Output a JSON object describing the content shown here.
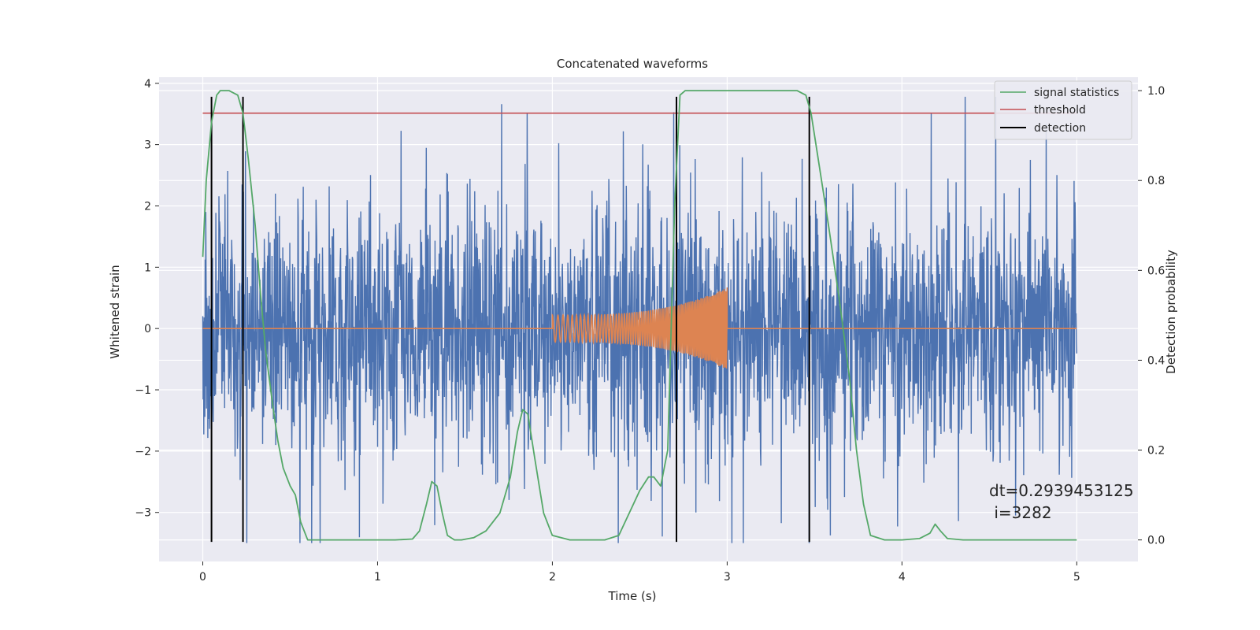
{
  "chart_data": {
    "type": "line",
    "title": "Concatenated waveforms",
    "xlabel": "Time (s)",
    "ylabel": "Whitened strain",
    "y2label": "Detection probability",
    "xlim": [
      -0.25,
      5.35
    ],
    "ylim": [
      -3.8,
      4.1
    ],
    "y2lim": [
      -0.048,
      1.03
    ],
    "x_ticks": [
      "0",
      "1",
      "2",
      "3",
      "4",
      "5"
    ],
    "y_ticks": [
      "4",
      "3",
      "2",
      "1",
      "0",
      "−1",
      "−2",
      "−3"
    ],
    "y2_ticks": [
      "1.0",
      "0.8",
      "0.6",
      "0.4",
      "0.2",
      "0.0"
    ],
    "grid": true,
    "legend_position": "top-right",
    "colors": {
      "noise": "#4c72b0",
      "signal": "#dd8452",
      "statistics": "#55a868",
      "threshold": "#c44e52",
      "detection": "#000000",
      "background": "#eaeaf2",
      "grid": "#ffffff"
    },
    "series": [
      {
        "name": "signal statistics",
        "axis": "right",
        "x": [
          0.0,
          0.02,
          0.05,
          0.08,
          0.1,
          0.15,
          0.2,
          0.23,
          0.26,
          0.3,
          0.33,
          0.36,
          0.4,
          0.43,
          0.46,
          0.5,
          0.53,
          0.56,
          0.6,
          0.7,
          0.8,
          0.9,
          1.0,
          1.1,
          1.2,
          1.24,
          1.28,
          1.31,
          1.34,
          1.37,
          1.4,
          1.44,
          1.48,
          1.55,
          1.62,
          1.7,
          1.76,
          1.8,
          1.83,
          1.86,
          1.9,
          1.95,
          2.0,
          2.1,
          2.2,
          2.3,
          2.38,
          2.44,
          2.5,
          2.55,
          2.58,
          2.62,
          2.66,
          2.7,
          2.73,
          2.76,
          2.8,
          3.0,
          3.2,
          3.4,
          3.45,
          3.48,
          3.52,
          3.58,
          3.64,
          3.7,
          3.74,
          3.78,
          3.82,
          3.9,
          4.0,
          4.1,
          4.16,
          4.19,
          4.22,
          4.26,
          4.35,
          4.5,
          4.7,
          4.9,
          5.0
        ],
        "values": [
          0.63,
          0.8,
          0.93,
          0.99,
          1.0,
          1.0,
          0.99,
          0.95,
          0.85,
          0.7,
          0.55,
          0.42,
          0.3,
          0.22,
          0.16,
          0.12,
          0.1,
          0.04,
          0.0,
          0.0,
          0.0,
          0.0,
          0.0,
          0.0,
          0.002,
          0.02,
          0.08,
          0.13,
          0.12,
          0.06,
          0.01,
          0.0,
          0.0,
          0.005,
          0.02,
          0.06,
          0.14,
          0.24,
          0.29,
          0.28,
          0.18,
          0.06,
          0.01,
          0.0,
          0.0,
          0.0,
          0.01,
          0.06,
          0.11,
          0.14,
          0.14,
          0.12,
          0.2,
          0.75,
          0.99,
          1.0,
          1.0,
          1.0,
          1.0,
          1.0,
          0.99,
          0.95,
          0.85,
          0.7,
          0.54,
          0.36,
          0.2,
          0.08,
          0.01,
          0.0,
          0.0,
          0.003,
          0.015,
          0.035,
          0.02,
          0.003,
          0.0,
          0.0,
          0.0,
          0.0,
          0.0
        ]
      },
      {
        "name": "threshold",
        "axis": "right",
        "x": [
          0.0,
          5.0
        ],
        "values": [
          0.95,
          0.95
        ]
      },
      {
        "name": "detection",
        "axis": "left",
        "x": [
          0.05,
          0.23,
          2.71,
          3.47
        ],
        "y_range": [
          -3.48,
          3.78
        ]
      }
    ],
    "annotation": {
      "line1": "dt=0.2939453125",
      "line2": " i=3282",
      "x": 4.5,
      "y": -2.95
    }
  }
}
